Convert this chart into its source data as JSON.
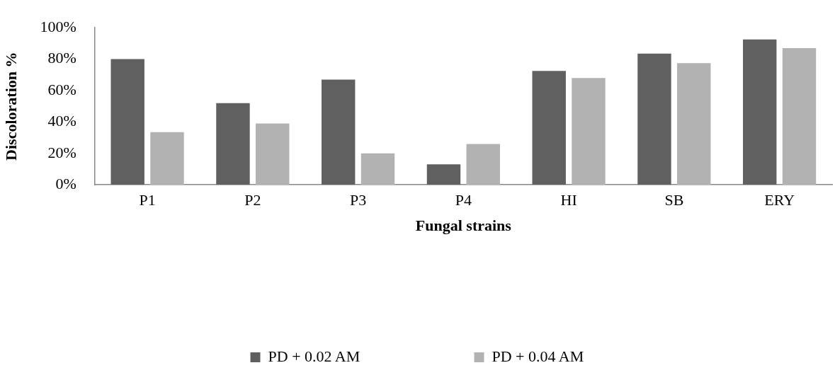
{
  "chart_data": {
    "type": "bar",
    "xlabel": "Fungal strains",
    "ylabel": "Discoloration %",
    "categories": [
      "P1",
      "P2",
      "P3",
      "P4",
      "HI",
      "SB",
      "ERY"
    ],
    "series": [
      {
        "name": "PD + 0.02 AM",
        "color": "#606060",
        "values": [
          80,
          52,
          67,
          13,
          72.5,
          83.5,
          92.5
        ]
      },
      {
        "name": "PD + 0.04 AM",
        "color": "#b2b2b2",
        "values": [
          33.5,
          39,
          20,
          26,
          68,
          77.5,
          87
        ]
      }
    ],
    "ylim": [
      0,
      100
    ],
    "yticks": [
      {
        "value": 0,
        "label": "0%"
      },
      {
        "value": 20,
        "label": "20%"
      },
      {
        "value": 40,
        "label": "40%"
      },
      {
        "value": 60,
        "label": "60%"
      },
      {
        "value": 80,
        "label": "80%"
      },
      {
        "value": 100,
        "label": "100%"
      }
    ],
    "grid": false,
    "legend": "bottom"
  }
}
